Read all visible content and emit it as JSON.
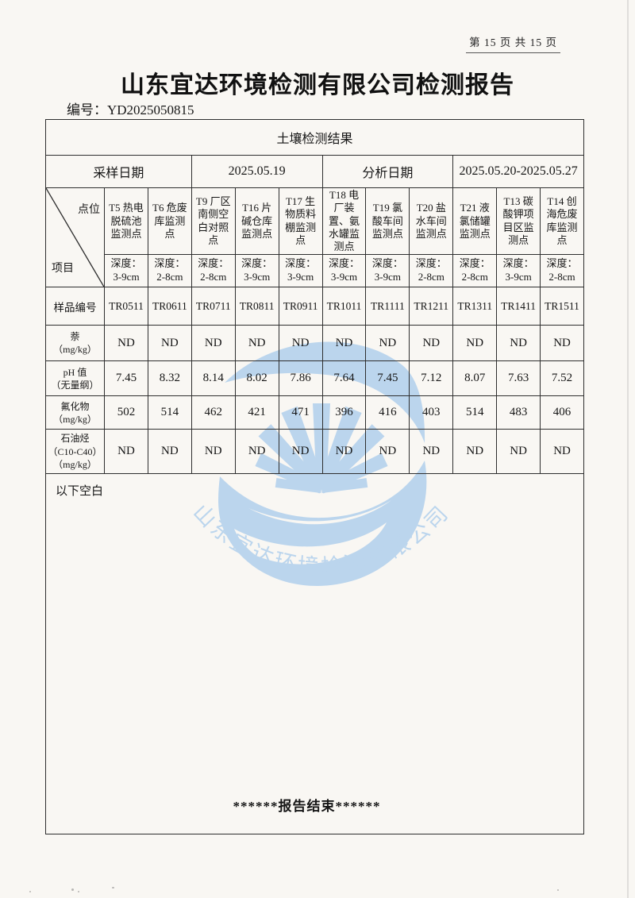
{
  "page": {
    "page_indicator": "第 15 页 共 15 页",
    "title": "山东宜达环境检测有限公司检测报告",
    "report_no": "编号：YD2025050815",
    "end_of_report": "******报告结束******"
  },
  "watermark": {
    "arc_text": "山东宜达环境检测有限公司",
    "color": "#b5d2ed"
  },
  "table": {
    "title": "土壤检测结果",
    "sampling_date_label": "采样日期",
    "sampling_date": "2025.05.19",
    "analysis_date_label": "分析日期",
    "analysis_date": "2025.05.20-2025.05.27",
    "corner_top": "点位",
    "corner_bottom": "项目",
    "sample_id_label": "样品编号",
    "below_blank": "以下空白",
    "points": [
      {
        "name": "T5 热电脱硫池监测点",
        "depth": "深度：\n3-9cm",
        "sample_id": "TR0511"
      },
      {
        "name": "T6 危废库监测点",
        "depth": "深度：\n2-8cm",
        "sample_id": "TR0611"
      },
      {
        "name": "T9 厂区南侧空白对照点",
        "depth": "深度：\n2-8cm",
        "sample_id": "TR0711"
      },
      {
        "name": "T16 片碱仓库监测点",
        "depth": "深度：\n3-9cm",
        "sample_id": "TR0811"
      },
      {
        "name": "T17 生物质料棚监测点",
        "depth": "深度：\n3-9cm",
        "sample_id": "TR0911"
      },
      {
        "name": "T18 电厂装置、氨水罐监测点",
        "depth": "深度：\n3-9cm",
        "sample_id": "TR1011"
      },
      {
        "name": "T19 氯酸车间监测点",
        "depth": "深度：\n3-9cm",
        "sample_id": "TR1111"
      },
      {
        "name": "T20 盐水车间监测点",
        "depth": "深度：\n2-8cm",
        "sample_id": "TR1211"
      },
      {
        "name": "T21 液氯储罐监测点",
        "depth": "深度：\n2-8cm",
        "sample_id": "TR1311"
      },
      {
        "name": "T13 碳酸钾项目区监测点",
        "depth": "深度：\n3-9cm",
        "sample_id": "TR1411"
      },
      {
        "name": "T14 创海危废库监测点",
        "depth": "深度：\n2-8cm",
        "sample_id": "TR1511"
      }
    ],
    "items": [
      {
        "label": "萘\n（mg/kg）",
        "values": [
          "ND",
          "ND",
          "ND",
          "ND",
          "ND",
          "ND",
          "ND",
          "ND",
          "ND",
          "ND",
          "ND"
        ]
      },
      {
        "label": "pH 值\n（无量纲）",
        "values": [
          "7.45",
          "8.32",
          "8.14",
          "8.02",
          "7.86",
          "7.64",
          "7.45",
          "7.12",
          "8.07",
          "7.63",
          "7.52"
        ]
      },
      {
        "label": "氟化物\n（mg/kg）",
        "values": [
          "502",
          "514",
          "462",
          "421",
          "471",
          "396",
          "416",
          "403",
          "514",
          "483",
          "406"
        ]
      },
      {
        "label": "石油烃\n（C10-C40）\n（mg/kg）",
        "values": [
          "ND",
          "ND",
          "ND",
          "ND",
          "ND",
          "ND",
          "ND",
          "ND",
          "ND",
          "ND",
          "ND"
        ]
      }
    ]
  }
}
